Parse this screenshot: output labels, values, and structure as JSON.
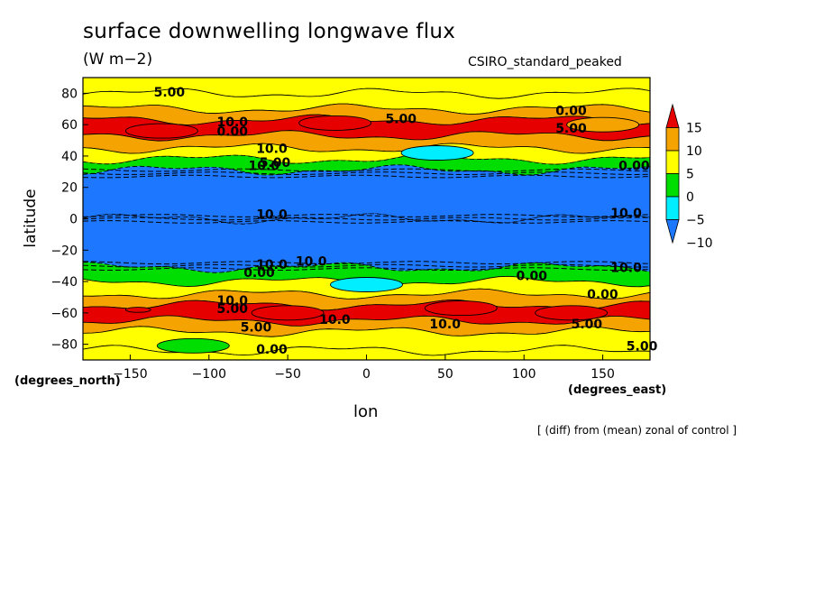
{
  "title": "surface downwelling longwave flux",
  "units": "(W m−2)",
  "model": "CSIRO_standard_peaked",
  "footnote": "[ (diff) from (mean) zonal of control ]",
  "chart_data": {
    "type": "heatmap",
    "title": "surface downwelling longwave flux",
    "subtitle": "(W m−2)",
    "xlabel": "lon",
    "ylabel": "latitude",
    "x_units": "(degrees_east)",
    "y_units": "(degrees_north)",
    "xlim": [
      -180,
      180
    ],
    "ylim": [
      -90,
      90
    ],
    "x_ticks": [
      -150,
      -100,
      -50,
      0,
      50,
      100,
      150
    ],
    "y_ticks": [
      -80,
      -60,
      -40,
      -20,
      0,
      20,
      40,
      60,
      80
    ],
    "colorbar": {
      "levels": [
        -10,
        -5,
        0,
        5,
        10,
        15
      ],
      "colors": [
        "#1e78ff",
        "#00eeff",
        "#00dd00",
        "#ffff00",
        "#f5a300",
        "#e60000"
      ],
      "tick_labels": [
        "15",
        "10",
        "5",
        "0",
        "−5",
        "−10"
      ]
    },
    "contour_labels": [
      "5.00",
      "10.0",
      "5.00",
      "0.00",
      "10.0",
      "5.00",
      "10.0",
      "0.00",
      "5.00",
      "10.0",
      "10.0",
      "10.0",
      "10.0",
      "0.00",
      "10.0",
      "0.00",
      "10.0",
      "0.00",
      "5.00",
      "10.0",
      "5.00",
      "10.0",
      "5.00",
      "0.00",
      "5.00",
      "0.00"
    ],
    "bands": [
      {
        "lat_min": 80,
        "lat_max": 90,
        "value": 0
      },
      {
        "lat_min": 70,
        "lat_max": 80,
        "value": 3
      },
      {
        "lat_min": 63,
        "lat_max": 70,
        "value": 7
      },
      {
        "lat_min": 53,
        "lat_max": 63,
        "value": 11
      },
      {
        "lat_min": 45,
        "lat_max": 53,
        "value": 6
      },
      {
        "lat_min": 38,
        "lat_max": 45,
        "value": 2
      },
      {
        "lat_min": 31,
        "lat_max": 38,
        "value": -3
      },
      {
        "lat_min": 0,
        "lat_max": 31,
        "value": -12
      },
      {
        "lat_min": -31,
        "lat_max": 0,
        "value": -12
      },
      {
        "lat_min": -40,
        "lat_max": -31,
        "value": -3
      },
      {
        "lat_min": -48,
        "lat_max": -40,
        "value": 2
      },
      {
        "lat_min": -55,
        "lat_max": -48,
        "value": 6
      },
      {
        "lat_min": -65,
        "lat_max": -55,
        "value": 11
      },
      {
        "lat_min": -72,
        "lat_max": -65,
        "value": 7
      },
      {
        "lat_min": -84,
        "lat_max": -72,
        "value": 3
      },
      {
        "lat_min": -90,
        "lat_max": -84,
        "value": 0
      }
    ],
    "features": [
      {
        "lon": -130,
        "lat": 56,
        "value": 11
      },
      {
        "lon": -20,
        "lat": 61,
        "value": 11
      },
      {
        "lon": 150,
        "lat": 60,
        "value": 7
      },
      {
        "lon": -145,
        "lat": -58,
        "value": 16
      },
      {
        "lon": 63,
        "lat": -57,
        "value": 16
      },
      {
        "lon": -50,
        "lat": -60,
        "value": 11
      },
      {
        "lon": 60,
        "lat": -57,
        "value": 11
      },
      {
        "lon": 130,
        "lat": -60,
        "value": 11
      },
      {
        "lon": 45,
        "lat": 42,
        "value": -6
      },
      {
        "lon": 0,
        "lat": -42,
        "value": -6
      },
      {
        "lon": -110,
        "lat": -81,
        "value": -3
      }
    ]
  }
}
